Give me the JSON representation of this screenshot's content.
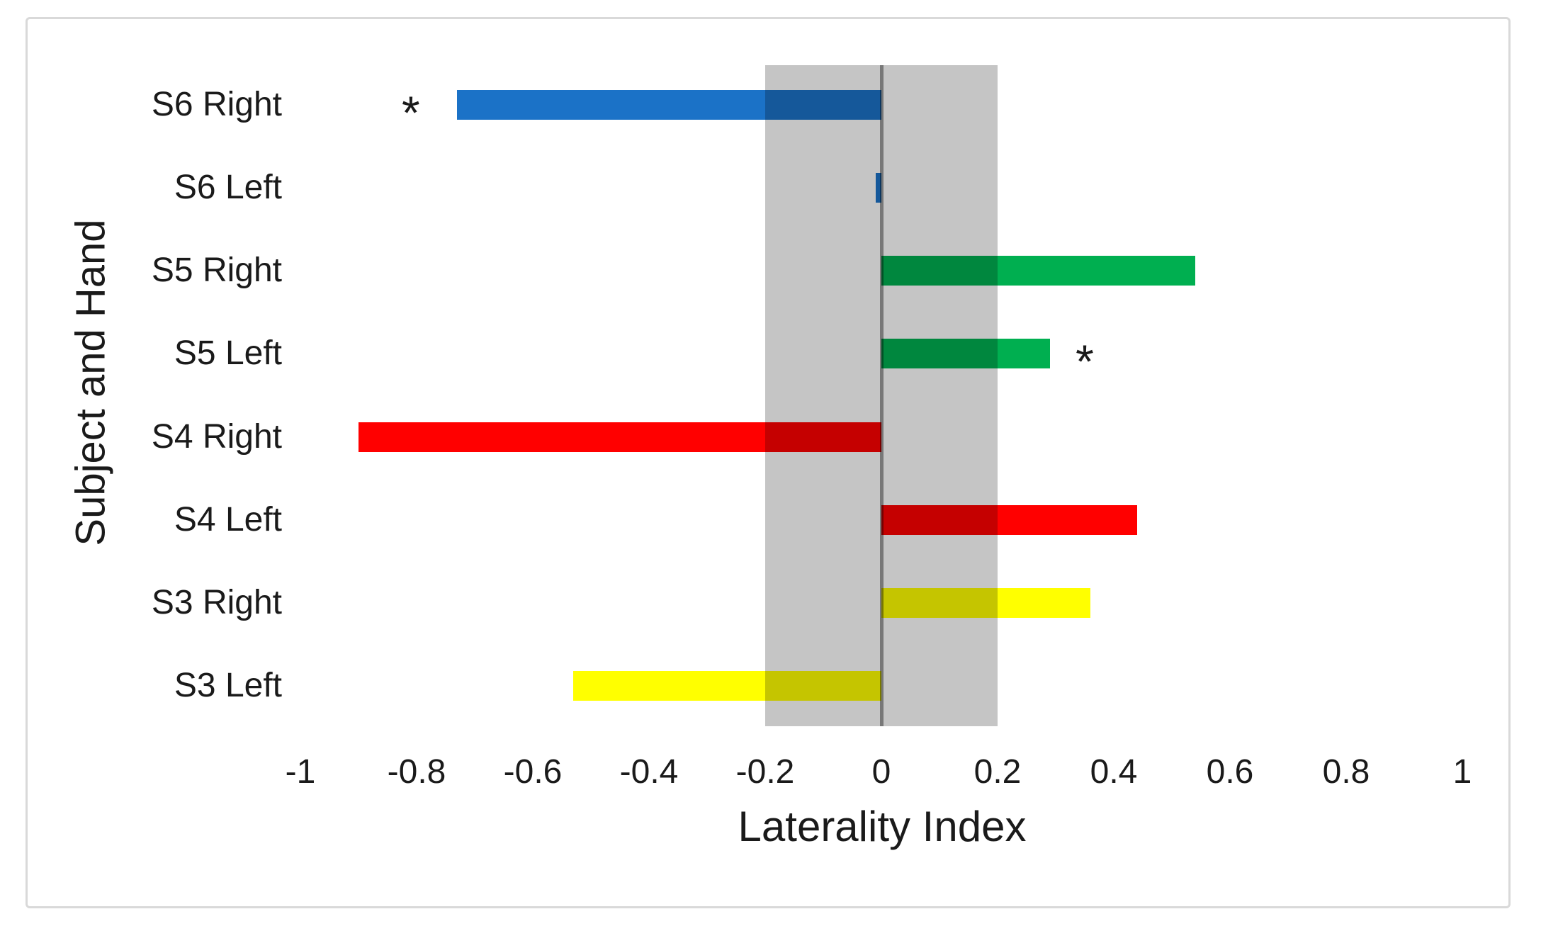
{
  "chart_data": {
    "type": "bar",
    "orientation": "horizontal",
    "title": "",
    "xlabel": "Laterality Index",
    "ylabel": "Subject and Hand",
    "xlim": [
      -1,
      1
    ],
    "grid": false,
    "legend": "none",
    "x_ticks": [
      "-1",
      "-0.8",
      "-0.6",
      "-0.4",
      "-0.2",
      "0",
      "0.2",
      "0.4",
      "0.6",
      "0.8",
      "1"
    ],
    "x_tick_values": [
      -1,
      -0.8,
      -0.6,
      -0.4,
      -0.2,
      0,
      0.2,
      0.4,
      0.6,
      0.8,
      1
    ],
    "categories": [
      "S6 Right",
      "S6 Left",
      "S5 Right",
      "S5 Left",
      "S4 Right",
      "S4 Left",
      "S3 Right",
      "S3 Left"
    ],
    "bars": [
      {
        "label": "S6 Right",
        "value": -0.73,
        "color": "#1b72c7",
        "significant": true
      },
      {
        "label": "S6 Left",
        "value": -0.01,
        "color": "#1b72c7",
        "significant": false
      },
      {
        "label": "S5 Right",
        "value": 0.54,
        "color": "#00af50",
        "significant": false
      },
      {
        "label": "S5 Left",
        "value": 0.29,
        "color": "#00af50",
        "significant": true
      },
      {
        "label": "S4 Right",
        "value": -0.9,
        "color": "#ff0000",
        "significant": false
      },
      {
        "label": "S4 Left",
        "value": 0.44,
        "color": "#ff0000",
        "significant": false
      },
      {
        "label": "S3 Right",
        "value": 0.36,
        "color": "#ffff00",
        "significant": false
      },
      {
        "label": "S3 Left",
        "value": -0.53,
        "color": "#ffff00",
        "significant": false
      }
    ],
    "annotations": [
      {
        "text": "*",
        "row": "S6 Right",
        "x": -0.81
      },
      {
        "text": "*",
        "row": "S5 Left",
        "x": 0.35
      }
    ],
    "reference_band": {
      "from": -0.2,
      "to": 0.2,
      "color": "#c5c5c5"
    },
    "zero_line": {
      "at": 0,
      "color": "#9b9b9b"
    },
    "colors": {
      "background": "#ffffff",
      "border": "#d9d9d9",
      "text": "#1a1a1a",
      "band": "#c5c5c5",
      "zero_line": "#9b9b9b",
      "blue": "#1b72c7",
      "green": "#00af50",
      "red": "#ff0000",
      "yellow": "#ffff00"
    }
  }
}
